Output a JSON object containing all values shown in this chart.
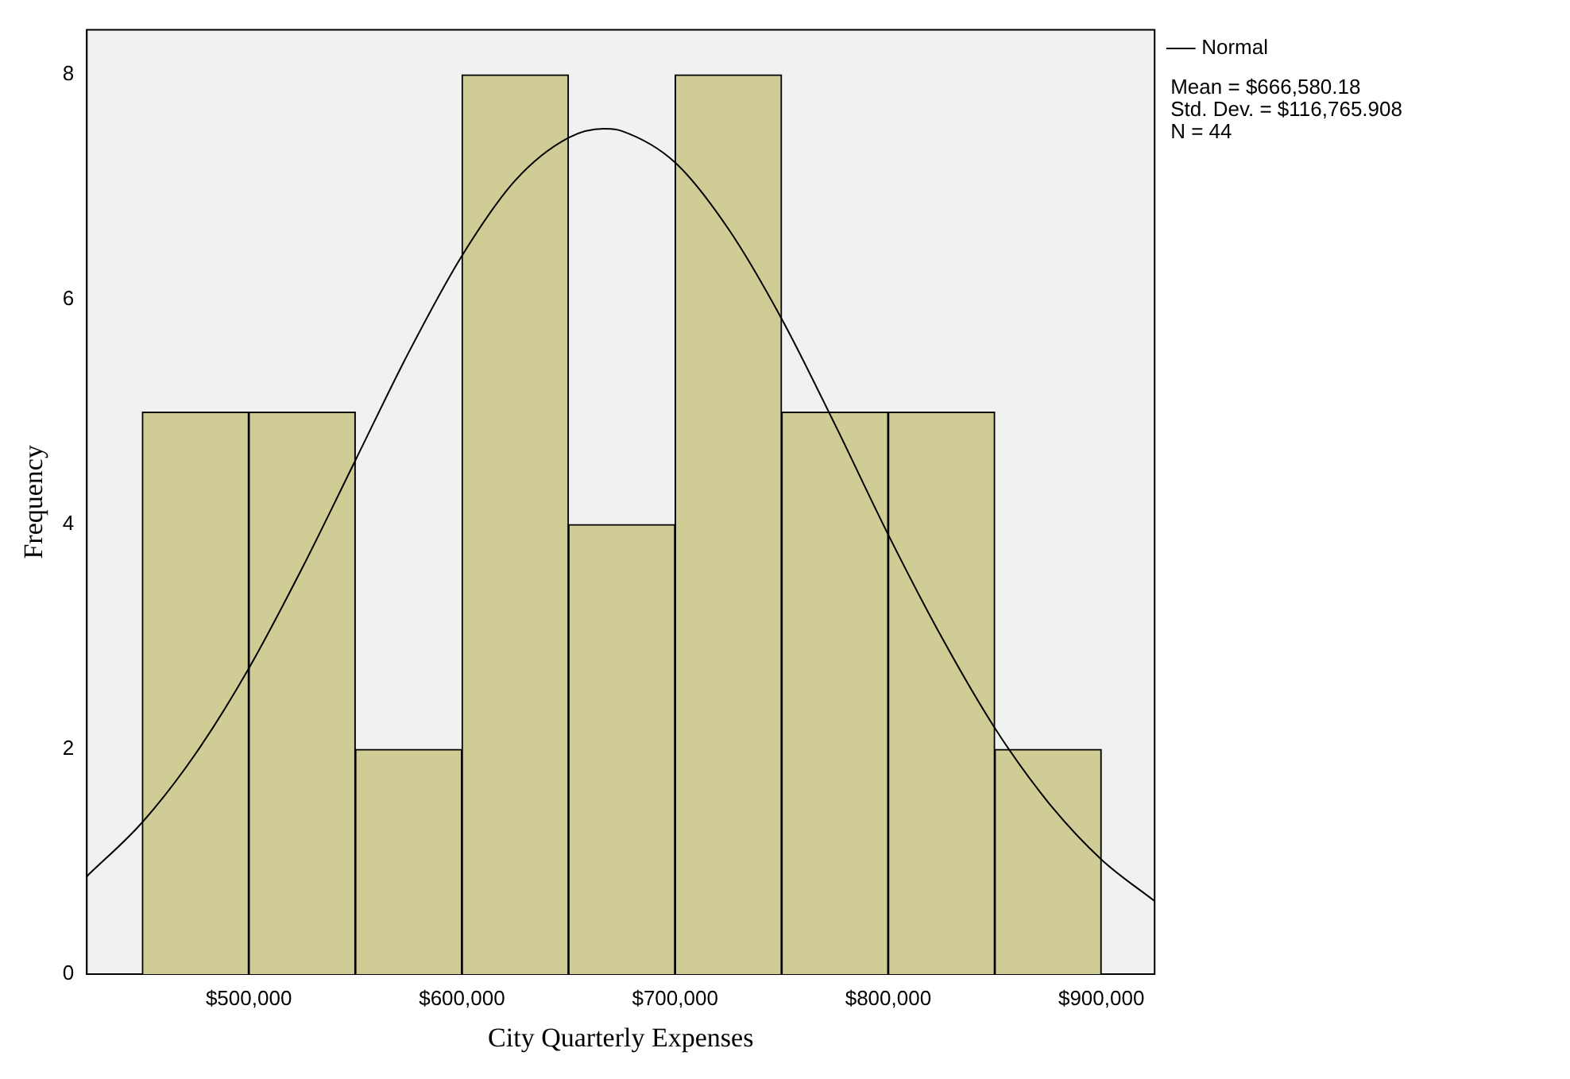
{
  "chart_data": {
    "type": "histogram",
    "xlabel": "City Quarterly Expenses",
    "ylabel": "Frequency",
    "bins": [
      450000,
      500000,
      550000,
      600000,
      650000,
      700000,
      750000,
      800000,
      850000,
      900000
    ],
    "values": [
      5,
      5,
      2,
      8,
      4,
      8,
      5,
      5,
      2
    ],
    "color": "#d0cc96",
    "series": [
      {
        "type": "line",
        "name": "Normal",
        "color": "#000000",
        "marker": "none",
        "x": [
          424000,
          450000,
          475000,
          500000,
          525000,
          550000,
          575000,
          600000,
          625000,
          650000,
          666580,
          675000,
          700000,
          725000,
          750000,
          775000,
          800000,
          825000,
          850000,
          875000,
          900000,
          925000
        ],
        "values": [
          0.87,
          1.35,
          1.96,
          2.72,
          3.61,
          4.57,
          5.53,
          6.39,
          7.06,
          7.44,
          7.52,
          7.5,
          7.22,
          6.63,
          5.83,
          4.89,
          3.91,
          3.0,
          2.19,
          1.53,
          1.02,
          0.65
        ]
      }
    ],
    "xlim": [
      424000,
      925000
    ],
    "xticks": [
      {
        "value": 500000,
        "label": "$500,000"
      },
      {
        "value": 600000,
        "label": "$600,000"
      },
      {
        "value": 700000,
        "label": "$700,000"
      },
      {
        "value": 800000,
        "label": "$800,000"
      },
      {
        "value": 900000,
        "label": "$900,000"
      }
    ],
    "ylim": [
      0,
      8.4
    ],
    "yticks": [
      0,
      2,
      4,
      6,
      8
    ],
    "grid": false,
    "legend": "top right",
    "annotations": [
      "Mean = $666,580.18",
      "Std. Dev. = $116,765.908",
      "N = 44"
    ]
  }
}
